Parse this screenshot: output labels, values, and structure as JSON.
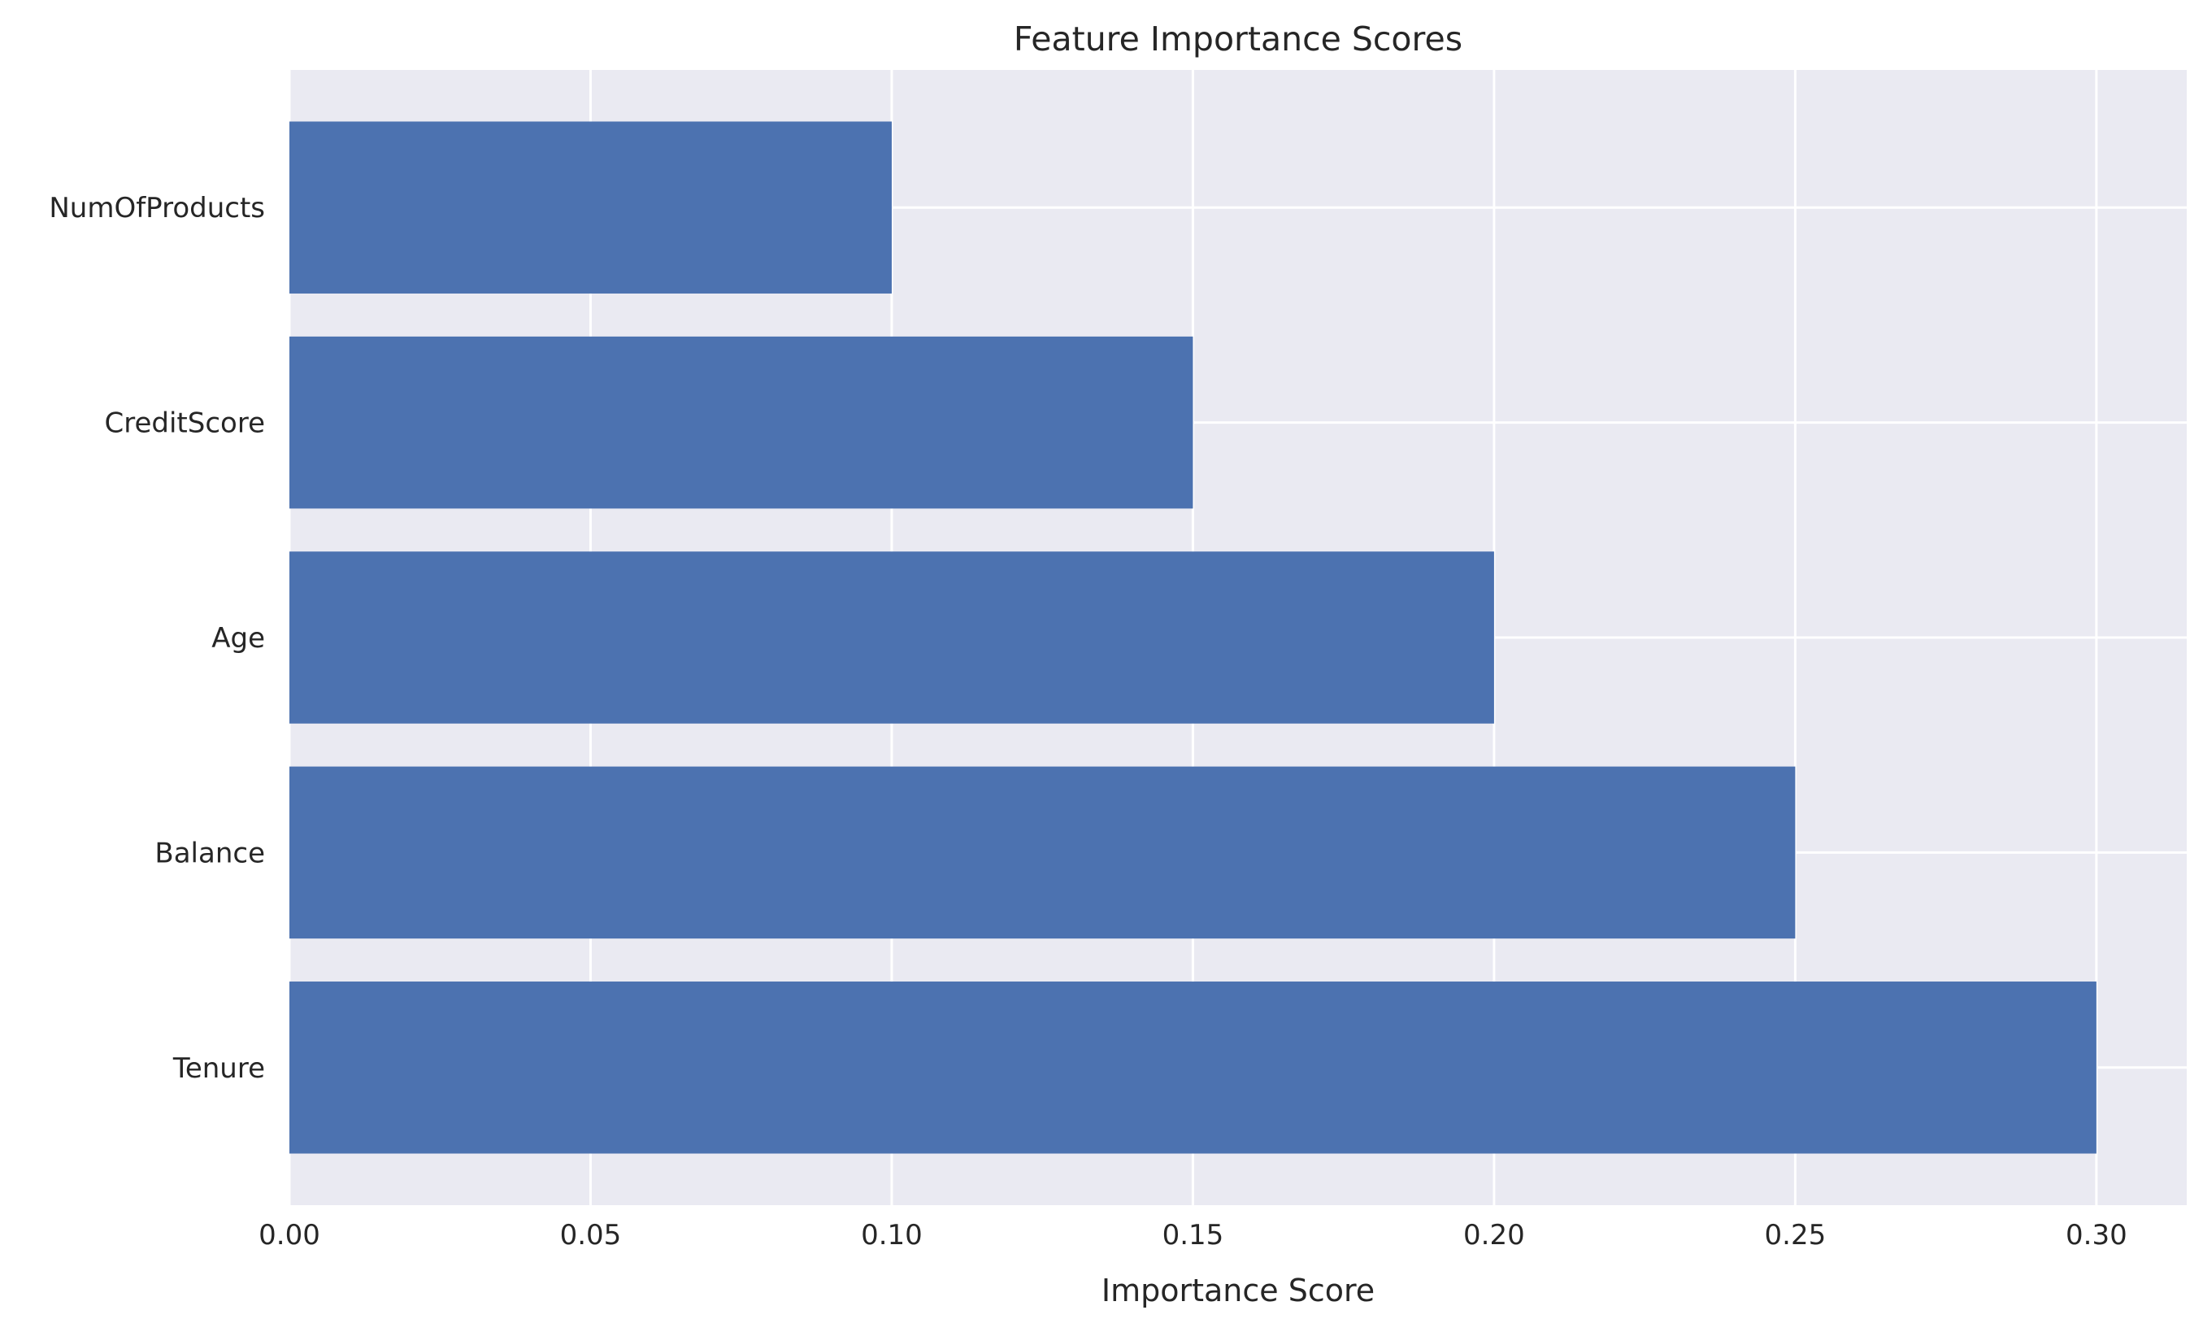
{
  "chart_data": {
    "type": "bar",
    "orientation": "horizontal",
    "title": "Feature Importance Scores",
    "xlabel": "Importance Score",
    "ylabel": "",
    "categories": [
      "Tenure",
      "Balance",
      "Age",
      "CreditScore",
      "NumOfProducts"
    ],
    "values": [
      0.3,
      0.25,
      0.2,
      0.15,
      0.1
    ],
    "xlim": [
      0,
      0.315
    ],
    "xticks": [
      0.0,
      0.05,
      0.1,
      0.15,
      0.2,
      0.25,
      0.3
    ],
    "xtick_labels": [
      "0.00",
      "0.05",
      "0.10",
      "0.15",
      "0.20",
      "0.25",
      "0.30"
    ],
    "grid": true,
    "legend": "none",
    "colors": {
      "bar": "#4c72b0",
      "plot_background": "#eaeaf2",
      "grid": "#ffffff",
      "text": "#262626"
    }
  }
}
